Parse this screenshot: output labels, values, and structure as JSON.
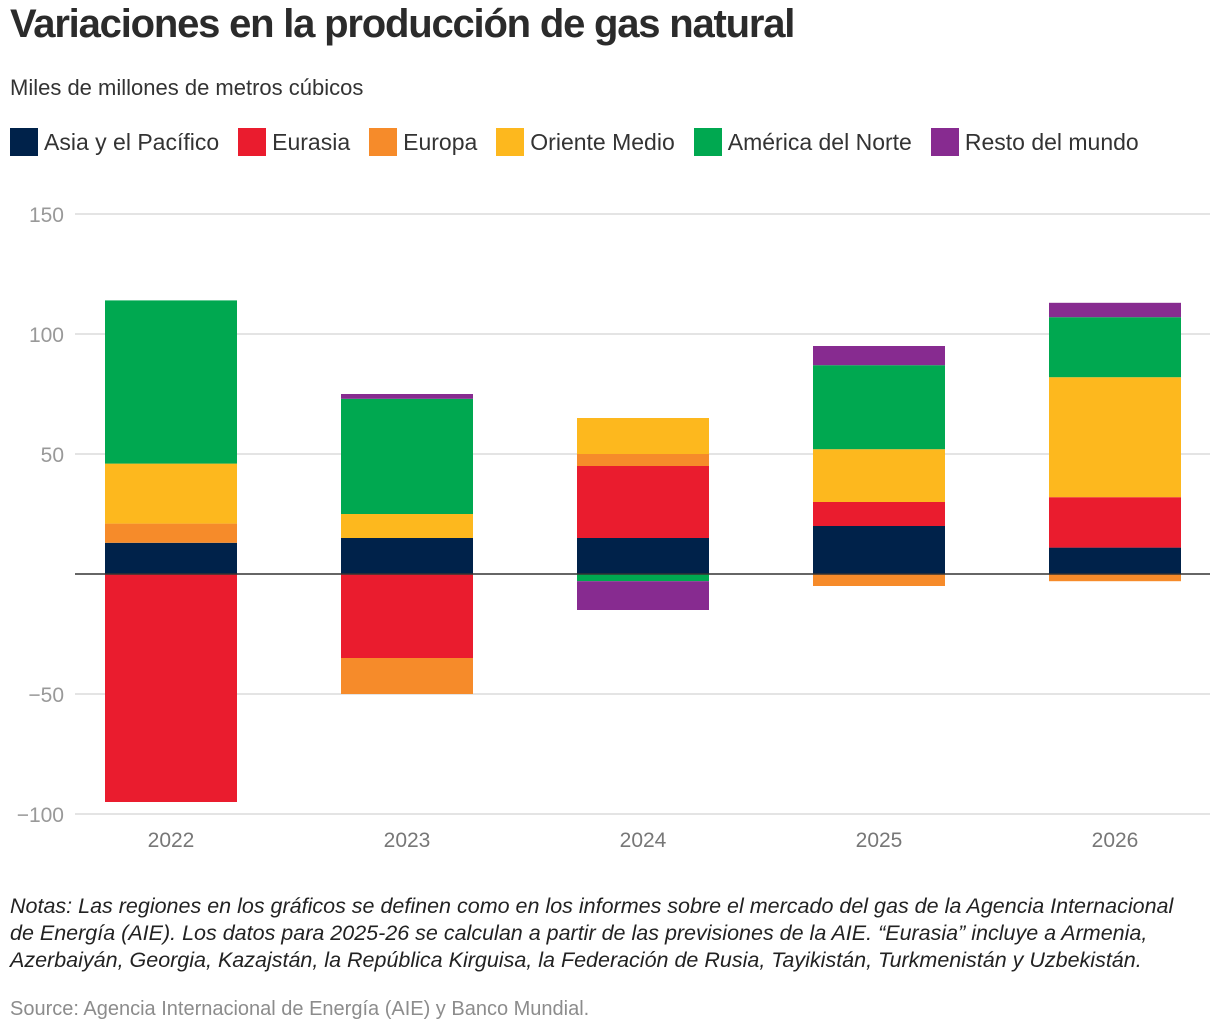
{
  "chart_data": {
    "type": "bar",
    "stacked": true,
    "title": "Variaciones en la producción de gas natural",
    "subtitle": "Miles de millones de metros cúbicos",
    "categories": [
      "2022",
      "2023",
      "2024",
      "2025",
      "2026"
    ],
    "series": [
      {
        "name": "Asia y el Pacífico",
        "color": "#00224a",
        "values": [
          13,
          15,
          15,
          20,
          11
        ]
      },
      {
        "name": "Eurasia",
        "color": "#ea1c2e",
        "values": [
          -95,
          -35,
          30,
          10,
          21
        ]
      },
      {
        "name": "Europa",
        "color": "#f68b2a",
        "values": [
          8,
          -15,
          5,
          -5,
          -3
        ]
      },
      {
        "name": "Oriente Medio",
        "color": "#fdb81e",
        "values": [
          25,
          10,
          15,
          22,
          50
        ]
      },
      {
        "name": "América del Norte",
        "color": "#00a850",
        "values": [
          68,
          48,
          -3,
          35,
          25
        ]
      },
      {
        "name": "Resto del mundo",
        "color": "#872b90",
        "values": [
          0,
          2,
          -12,
          8,
          6
        ]
      }
    ],
    "ylim": [
      -100,
      150
    ],
    "yticks": [
      -100,
      -50,
      50,
      100,
      150
    ],
    "ytick_labels": [
      "−100",
      "−50",
      "50",
      "100",
      "150"
    ],
    "grid": true,
    "legend_position": "top",
    "xlabel": "",
    "ylabel": ""
  },
  "notes": "Notas: Las regiones en los gráficos se definen como en los informes sobre el mercado del gas de la Agencia Internacional de Energía (AIE). Los datos para 2025-26 se calculan a partir de las previsiones de la AIE. “Eurasia” incluye a Armenia, Azerbaiyán, Georgia, Kazajstán, la República Kirguisa, la Federación de Rusia, Tayikistán, Turkmenistán y Uzbekistán.",
  "source": "Source: Agencia Internacional de Energía (AIE) y Banco Mundial."
}
